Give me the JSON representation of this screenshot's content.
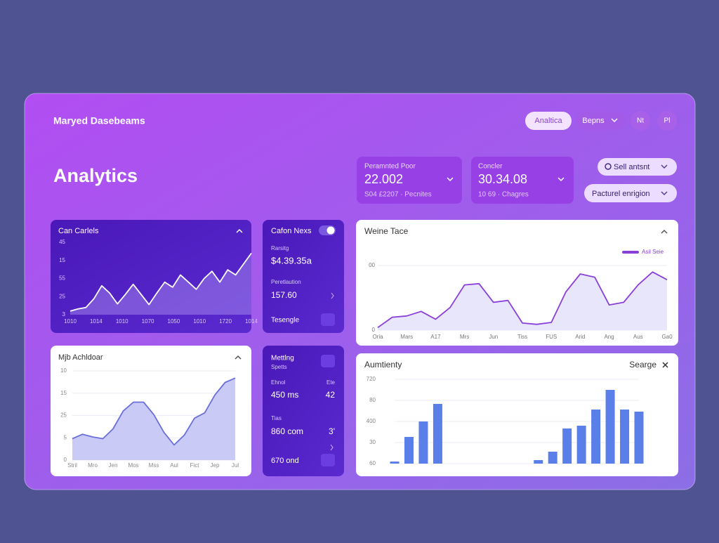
{
  "header": {
    "brand": "Maryed Dasebeams",
    "buttons": [
      "Analtica",
      "Bepns",
      "Nt",
      "Pl"
    ]
  },
  "title": "Analytics",
  "stats": [
    {
      "label": "Peramnted Poor",
      "value": "22.002",
      "sub": "S04 £2207 · Pecnites"
    },
    {
      "label": "Concler",
      "value": "30.34.08",
      "sub": "10 69 · Chagres"
    }
  ],
  "filters": [
    "Sell antsnt",
    "Pacturel enrigion"
  ],
  "charts": [
    {
      "type": "area",
      "title": "Can Carlels",
      "ylim": [
        0,
        100
      ],
      "y_labels": [
        "45",
        "15",
        "55",
        "25",
        "3"
      ],
      "x_labels": [
        "1010",
        "1014",
        "1010",
        "1070",
        "1050",
        "1010",
        "1720",
        "1014"
      ],
      "values": [
        5,
        8,
        10,
        22,
        40,
        30,
        15,
        28,
        42,
        28,
        14,
        30,
        45,
        38,
        55,
        45,
        35,
        50,
        60,
        45,
        62,
        55,
        70,
        85
      ]
    },
    {
      "type": "area",
      "title": "Weine Tace",
      "legend": "Asil Seie",
      "ylim": [
        0,
        100
      ],
      "y_labels": [
        "00",
        "0"
      ],
      "x_labels": [
        "Oria",
        "Mars",
        "A17",
        "Mrs",
        "Jun",
        "Tiss",
        "FUS",
        "Arid",
        "Ang",
        "Aus",
        "Ga0"
      ],
      "values": [
        4,
        20,
        22,
        29,
        17,
        35,
        70,
        72,
        43,
        46,
        11,
        9,
        12,
        59,
        87,
        82,
        39,
        43,
        70,
        90,
        78
      ]
    },
    {
      "type": "area",
      "title": "Mjb Achldoar",
      "ylim": [
        0,
        100
      ],
      "y_labels": [
        "10",
        "15",
        "25",
        "5",
        "0"
      ],
      "x_labels": [
        "Stril",
        "Mro",
        "Jen",
        "Mos",
        "Mss",
        "Aul",
        "Fict",
        "Jep",
        "Jul"
      ],
      "values": [
        24,
        29,
        26,
        24,
        35,
        55,
        65,
        65,
        51,
        31,
        17,
        28,
        47,
        53,
        73,
        87,
        92
      ]
    },
    {
      "type": "bar",
      "title": "Aumtienty",
      "action": "Searge",
      "ylim": [
        0,
        120
      ],
      "y_labels": [
        "720",
        "80",
        "400",
        "30",
        "60"
      ],
      "values": [
        3,
        38,
        60,
        85,
        null,
        null,
        null,
        null,
        null,
        null,
        5,
        17,
        50,
        54,
        77,
        105,
        77,
        74
      ]
    }
  ],
  "cards": [
    {
      "title": "Cafon Nexs",
      "rows": [
        [
          "Rarsitg",
          "$4.39.35a"
        ],
        [
          "Peretlaution",
          "157.60"
        ]
      ],
      "footer": "Tesengle"
    },
    {
      "title": "Mettlng",
      "subtitle": "Spetts",
      "rows": [
        [
          "Ehnol",
          "Ete"
        ],
        [
          "450 ms",
          "42"
        ],
        [
          "Tias",
          ""
        ],
        [
          "860 com",
          "3'"
        ]
      ],
      "footer": "670 ond"
    }
  ]
}
